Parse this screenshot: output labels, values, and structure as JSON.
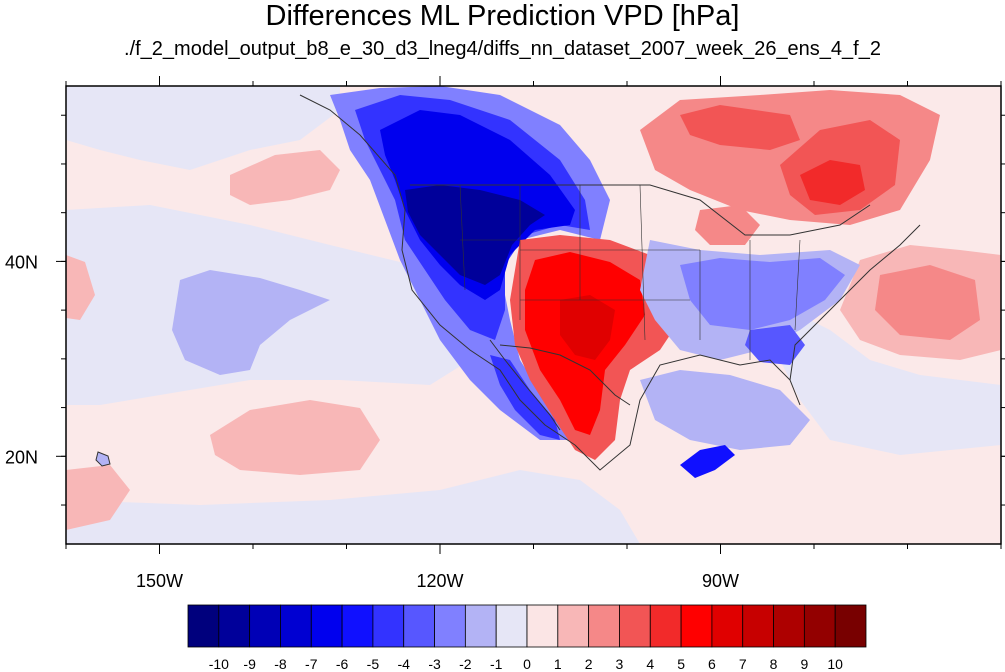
{
  "title": "Differences ML Prediction VPD [hPa]",
  "subtitle": "./f_2_model_output_b8_e_30_d3_lneg4/diffs_nn_dataset_2007_week_26_ens_4_f_2",
  "map": {
    "lon_range": [
      -160,
      -60
    ],
    "lat_range": [
      11,
      58
    ],
    "x_ticks": [
      {
        "value": -150,
        "label": "150W"
      },
      {
        "value": -120,
        "label": "120W"
      },
      {
        "value": -90,
        "label": "90W"
      }
    ],
    "y_ticks": [
      {
        "value": 40,
        "label": "40N"
      },
      {
        "value": 20,
        "label": "20N"
      }
    ],
    "background_color": "#fbe9e9"
  },
  "colorbar": {
    "labels": [
      "-10",
      "-9",
      "-8",
      "-7",
      "-6",
      "-5",
      "-4",
      "-3",
      "-2",
      "-1",
      "0",
      "1",
      "2",
      "3",
      "4",
      "5",
      "6",
      "7",
      "8",
      "9",
      "10"
    ],
    "colors": [
      "#00007d",
      "#00009a",
      "#0000b6",
      "#0000d2",
      "#0000ee",
      "#1010ff",
      "#3333ff",
      "#5757ff",
      "#8080ff",
      "#b3b3f5",
      "#e6e6f6",
      "#fbe5e5",
      "#f8b7b7",
      "#f58888",
      "#f25555",
      "#f22a2a",
      "#ff0000",
      "#e00000",
      "#c70000",
      "#ad0000",
      "#930000",
      "#780000"
    ]
  }
}
